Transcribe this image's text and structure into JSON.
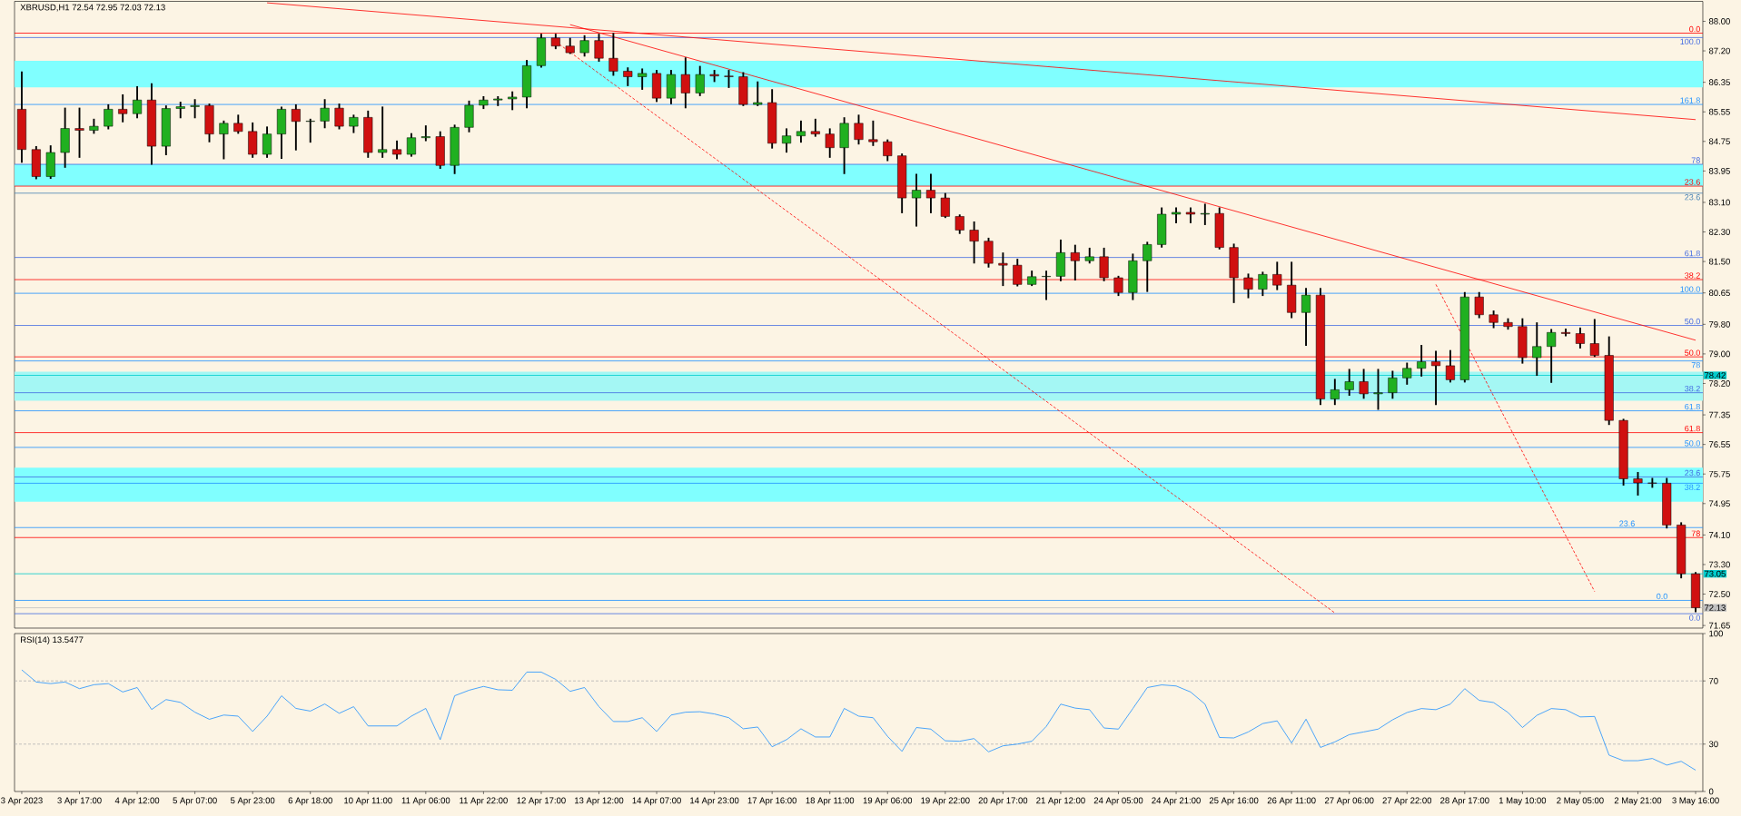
{
  "chart_data": [
    {
      "type": "candlestick",
      "title": "XBRUSD,H1 72.54 72.95 72.03 72.13",
      "categories": [
        null,
        null,
        null,
        null,
        null,
        null,
        null,
        null,
        null,
        null,
        null,
        null,
        null,
        null,
        null,
        null,
        null,
        null,
        null,
        null,
        null,
        null,
        null,
        null,
        null,
        null,
        null,
        null,
        null,
        null,
        null,
        null,
        null,
        null,
        null,
        null,
        null,
        null,
        null,
        null,
        null,
        null,
        null,
        null,
        null,
        null,
        null,
        null,
        null,
        null,
        null,
        null,
        null,
        null,
        null,
        null,
        null,
        null,
        null,
        null,
        null,
        null,
        null,
        null,
        null,
        null,
        null,
        null,
        null,
        null,
        null,
        null,
        null,
        null,
        null,
        null,
        null,
        null,
        null,
        null,
        null,
        null,
        null,
        null,
        null,
        null,
        null,
        null,
        null,
        null,
        null,
        null,
        null,
        null,
        null,
        null,
        null,
        null,
        null,
        null,
        null,
        null,
        null,
        null,
        null,
        null,
        null,
        null,
        null,
        null,
        null,
        null,
        null,
        null,
        null,
        null,
        null
      ],
      "ohlc": [
        [
          85.62,
          86.62,
          84.2,
          84.53
        ],
        [
          84.53,
          84.6,
          83.75,
          83.8
        ],
        [
          83.8,
          84.62,
          83.76,
          84.45
        ],
        [
          84.45,
          85.64,
          84.06,
          85.1
        ],
        [
          85.1,
          85.64,
          84.33,
          85.05
        ],
        [
          85.05,
          85.34,
          84.98,
          85.16
        ],
        [
          85.16,
          85.73,
          85.1,
          85.62
        ],
        [
          85.62,
          86.0,
          85.29,
          85.5
        ],
        [
          85.5,
          86.22,
          85.4,
          85.87
        ],
        [
          85.87,
          86.3,
          84.14,
          84.62
        ],
        [
          84.62,
          85.7,
          84.4,
          85.64
        ],
        [
          85.64,
          85.8,
          85.4,
          85.69
        ],
        [
          85.69,
          85.87,
          85.4,
          85.72
        ],
        [
          85.72,
          85.75,
          84.75,
          84.95
        ],
        [
          84.95,
          85.29,
          84.29,
          85.24
        ],
        [
          85.24,
          85.45,
          84.98,
          85.02
        ],
        [
          85.02,
          85.24,
          84.33,
          84.4
        ],
        [
          84.4,
          85.13,
          84.33,
          84.95
        ],
        [
          84.95,
          85.67,
          84.3,
          85.62
        ],
        [
          85.62,
          85.73,
          84.53,
          85.29
        ],
        [
          85.29,
          85.34,
          84.74,
          85.3
        ],
        [
          85.3,
          85.87,
          85.13,
          85.65
        ],
        [
          85.65,
          85.75,
          85.1,
          85.16
        ],
        [
          85.16,
          85.45,
          85.0,
          85.4
        ],
        [
          85.4,
          85.56,
          84.33,
          84.45
        ],
        [
          84.45,
          85.67,
          84.33,
          84.53
        ],
        [
          84.53,
          84.75,
          84.29,
          84.4
        ],
        [
          84.4,
          84.95,
          84.36,
          84.85
        ],
        [
          84.85,
          85.16,
          84.78,
          84.88
        ],
        [
          84.88,
          85.0,
          84.03,
          84.1
        ],
        [
          84.1,
          85.18,
          83.89,
          85.13
        ],
        [
          85.13,
          85.83,
          85.02,
          85.73
        ],
        [
          85.73,
          85.95,
          85.65,
          85.87
        ],
        [
          85.87,
          85.95,
          85.73,
          85.9
        ],
        [
          85.9,
          86.08,
          85.62,
          85.95
        ],
        [
          85.95,
          86.93,
          85.67,
          86.8
        ],
        [
          86.8,
          87.64,
          86.77,
          87.55
        ],
        [
          87.55,
          87.64,
          87.27,
          87.33
        ],
        [
          87.33,
          87.53,
          87.14,
          87.15
        ],
        [
          87.15,
          87.6,
          87.07,
          87.48
        ],
        [
          87.48,
          87.64,
          86.93,
          87.0
        ],
        [
          87.0,
          87.66,
          86.55,
          86.65
        ],
        [
          86.65,
          86.73,
          86.27,
          86.5
        ],
        [
          86.5,
          86.7,
          86.17,
          86.59
        ],
        [
          86.59,
          86.66,
          85.84,
          85.92
        ],
        [
          85.92,
          86.66,
          85.78,
          86.56
        ],
        [
          86.56,
          87.0,
          85.67,
          86.06
        ],
        [
          86.06,
          86.77,
          86.0,
          86.56
        ],
        [
          86.56,
          86.66,
          86.38,
          86.52
        ],
        [
          86.52,
          86.66,
          86.22,
          86.5
        ],
        [
          86.5,
          86.6,
          85.73,
          85.75
        ],
        [
          85.75,
          86.35,
          85.73,
          85.8
        ],
        [
          85.8,
          86.14,
          84.58,
          84.7
        ],
        [
          84.7,
          85.08,
          84.47,
          84.9
        ],
        [
          84.9,
          85.29,
          84.74,
          85.02
        ],
        [
          85.02,
          85.34,
          84.9,
          84.95
        ],
        [
          84.95,
          85.08,
          84.33,
          84.58
        ],
        [
          84.58,
          85.38,
          83.89,
          85.24
        ],
        [
          85.24,
          85.45,
          84.69,
          84.8
        ],
        [
          84.8,
          85.29,
          84.65,
          84.74
        ],
        [
          84.74,
          84.78,
          84.24,
          84.36
        ],
        [
          84.36,
          84.4,
          82.83,
          83.22
        ],
        [
          83.22,
          83.85,
          82.47,
          83.43
        ],
        [
          83.43,
          83.85,
          82.83,
          83.22
        ],
        [
          83.22,
          83.33,
          82.7,
          82.72
        ],
        [
          82.72,
          82.75,
          82.27,
          82.35
        ],
        [
          82.35,
          82.56,
          81.47,
          82.05
        ],
        [
          82.05,
          82.12,
          81.36,
          81.45
        ],
        [
          81.45,
          81.72,
          80.86,
          81.4
        ],
        [
          81.4,
          81.55,
          80.85,
          80.88
        ],
        [
          80.88,
          81.23,
          80.86,
          81.09
        ],
        [
          81.09,
          81.23,
          80.48,
          81.1
        ],
        [
          81.1,
          82.07,
          80.99,
          81.74
        ],
        [
          81.74,
          81.93,
          81.01,
          81.52
        ],
        [
          81.52,
          81.85,
          81.47,
          81.63
        ],
        [
          81.63,
          81.85,
          80.99,
          81.06
        ],
        [
          81.06,
          81.09,
          80.59,
          80.66
        ],
        [
          80.66,
          81.69,
          80.48,
          81.52
        ],
        [
          81.52,
          82.01,
          80.7,
          81.96
        ],
        [
          81.96,
          82.94,
          81.9,
          82.78
        ],
        [
          82.78,
          82.94,
          82.56,
          82.83
        ],
        [
          82.83,
          82.94,
          82.56,
          82.78
        ],
        [
          82.78,
          83.04,
          82.51,
          82.8
        ],
        [
          82.8,
          82.94,
          81.85,
          81.88
        ],
        [
          81.88,
          81.96,
          80.4,
          81.06
        ],
        [
          81.06,
          81.15,
          80.53,
          80.75
        ],
        [
          80.75,
          81.2,
          80.59,
          81.15
        ],
        [
          81.15,
          81.47,
          80.75,
          80.86
        ],
        [
          80.86,
          81.47,
          79.99,
          80.12
        ],
        [
          80.12,
          80.76,
          79.24,
          80.59
        ],
        [
          80.59,
          80.76,
          77.64,
          77.78
        ],
        [
          77.78,
          78.3,
          77.64,
          78.03
        ],
        [
          78.03,
          78.57,
          77.89,
          78.25
        ],
        [
          78.25,
          78.57,
          77.81,
          77.92
        ],
        [
          77.92,
          78.57,
          77.51,
          77.95
        ],
        [
          77.95,
          78.52,
          77.81,
          78.35
        ],
        [
          78.35,
          78.74,
          78.19,
          78.61
        ],
        [
          78.61,
          79.22,
          78.41,
          78.79
        ],
        [
          78.79,
          79.06,
          77.64,
          78.68
        ],
        [
          78.68,
          79.08,
          78.25,
          78.3
        ],
        [
          78.3,
          80.65,
          78.25,
          80.54
        ],
        [
          80.54,
          80.65,
          79.99,
          80.06
        ],
        [
          80.06,
          80.15,
          79.72,
          79.85
        ],
        [
          79.85,
          79.94,
          79.68,
          79.74
        ],
        [
          79.74,
          79.94,
          78.76,
          78.9
        ],
        [
          78.9,
          79.83,
          78.43,
          79.2
        ],
        [
          79.2,
          79.65,
          78.24,
          79.58
        ],
        [
          79.58,
          79.66,
          79.5,
          79.55
        ],
        [
          79.55,
          79.69,
          79.17,
          79.28
        ],
        [
          79.28,
          79.92,
          78.94,
          78.96
        ],
        [
          78.96,
          79.45,
          77.1,
          77.2
        ],
        [
          77.2,
          77.22,
          75.46,
          75.62
        ],
        [
          75.62,
          75.78,
          75.19,
          75.51
        ],
        [
          75.51,
          75.62,
          75.4,
          75.5
        ],
        [
          75.5,
          75.62,
          74.3,
          74.37
        ],
        [
          74.37,
          74.42,
          72.95,
          73.05
        ],
        [
          73.05,
          73.07,
          72.03,
          72.13
        ]
      ],
      "colors": [
        "#d01010",
        "#d01010",
        "#20b020",
        "#20b020",
        "#d01010",
        "#20b020",
        "#20b020",
        "#d01010",
        "#20b020",
        "#d01010",
        "#20b020",
        "#20b020",
        "#20b020",
        "#d01010",
        "#20b020",
        "#d01010",
        "#d01010",
        "#20b020",
        "#20b020",
        "#d01010",
        "#20b020",
        "#20b020",
        "#d01010",
        "#20b020",
        "#d01010",
        "#20b020",
        "#d01010",
        "#20b020",
        "#20b020",
        "#d01010",
        "#20b020",
        "#20b020",
        "#20b020",
        "#20b020",
        "#20b020",
        "#20b020",
        "#20b020",
        "#d01010",
        "#d01010",
        "#20b020",
        "#d01010",
        "#d01010",
        "#d01010",
        "#20b020",
        "#d01010",
        "#20b020",
        "#d01010",
        "#20b020",
        "#d01010",
        "#d01010",
        "#d01010",
        "#20b020",
        "#d01010",
        "#20b020",
        "#20b020",
        "#d01010",
        "#d01010",
        "#20b020",
        "#d01010",
        "#d01010",
        "#d01010",
        "#d01010",
        "#20b020",
        "#d01010",
        "#d01010",
        "#d01010",
        "#d01010",
        "#d01010",
        "#d01010",
        "#d01010",
        "#20b020",
        "#20b020",
        "#20b020",
        "#d01010",
        "#20b020",
        "#d01010",
        "#d01010",
        "#20b020",
        "#20b020",
        "#20b020",
        "#20b020",
        "#d01010",
        "#20b020",
        "#d01010",
        "#d01010",
        "#d01010",
        "#20b020",
        "#d01010",
        "#d01010",
        "#20b020",
        "#d01010",
        "#20b020",
        "#20b020",
        "#d01010",
        "#20b020",
        "#20b020",
        "#20b020",
        "#20b020",
        "#d01010",
        "#d01010",
        "#20b020",
        "#d01010",
        "#d01010",
        "#d01010",
        "#d01010",
        "#20b020",
        "#20b020",
        "#d01010",
        "#d01010",
        "#d01010",
        "#d01010",
        "#d01010",
        "#d01010",
        "#d01010",
        "#d01010",
        "#d01010",
        "#d01010"
      ],
      "series": [
        {
          "type": "line",
          "color": "#ff0000",
          "line_style": "solid",
          "values": [
            null,
            null,
            null,
            null,
            null,
            null,
            null,
            null,
            null,
            null,
            null,
            null,
            null,
            null,
            null,
            null,
            null,
            88.5,
            null,
            null,
            null,
            null,
            null,
            null,
            null,
            null,
            null,
            null,
            null,
            null,
            null,
            null,
            null,
            null,
            null,
            null,
            null,
            null,
            null,
            null,
            null,
            null,
            null,
            null,
            null,
            null,
            null,
            null,
            null,
            null,
            null,
            null,
            null,
            null,
            null,
            null,
            null,
            null,
            null,
            null,
            null,
            null,
            null,
            null,
            null,
            null,
            null,
            null,
            null,
            null,
            null,
            null,
            null,
            null,
            null,
            null,
            null,
            null,
            null,
            null,
            null,
            null,
            null,
            null,
            null,
            null,
            null,
            null,
            null,
            null,
            null,
            null,
            null,
            null,
            null,
            null,
            null,
            null,
            null,
            null,
            null,
            null,
            null,
            null,
            null,
            null,
            null,
            null,
            null,
            null,
            null,
            null,
            null,
            null,
            null,
            null,
            85.34
          ]
        },
        {
          "type": "line",
          "color": "#ff0000",
          "line_style": "solid",
          "values": [
            null,
            null,
            null,
            null,
            null,
            null,
            null,
            null,
            null,
            null,
            null,
            null,
            null,
            null,
            null,
            null,
            null,
            null,
            null,
            null,
            null,
            null,
            null,
            null,
            null,
            null,
            null,
            null,
            null,
            null,
            null,
            null,
            null,
            null,
            null,
            null,
            null,
            null,
            87.91,
            null,
            null,
            null,
            null,
            null,
            null,
            null,
            null,
            null,
            null,
            null,
            null,
            null,
            null,
            null,
            null,
            null,
            null,
            null,
            null,
            null,
            null,
            null,
            null,
            null,
            null,
            null,
            null,
            null,
            null,
            null,
            null,
            null,
            null,
            null,
            null,
            null,
            null,
            null,
            null,
            null,
            null,
            null,
            null,
            null,
            null,
            null,
            null,
            null,
            null,
            null,
            null,
            null,
            null,
            null,
            null,
            null,
            null,
            null,
            null,
            null,
            null,
            null,
            null,
            null,
            null,
            null,
            null,
            null,
            null,
            null,
            null,
            null,
            null,
            null,
            null,
            null,
            79.37
          ]
        },
        {
          "type": "line",
          "color": "#ff0000",
          "line_style": "dashed",
          "values": [
            null,
            null,
            null,
            null,
            null,
            null,
            null,
            null,
            null,
            null,
            null,
            null,
            null,
            null,
            null,
            null,
            null,
            null,
            null,
            null,
            null,
            null,
            null,
            null,
            null,
            null,
            null,
            null,
            null,
            null,
            null,
            null,
            null,
            null,
            null,
            null,
            null,
            87.45,
            null,
            null,
            null,
            null,
            null,
            null,
            null,
            null,
            null,
            null,
            null,
            null,
            null,
            null,
            null,
            null,
            null,
            null,
            null,
            null,
            null,
            null,
            null,
            null,
            null,
            null,
            null,
            null,
            null,
            null,
            null,
            null,
            null,
            null,
            null,
            null,
            null,
            null,
            null,
            null,
            null,
            null,
            null,
            null,
            null,
            null,
            null,
            null,
            null,
            null,
            null,
            null,
            null,
            71.99,
            null,
            null,
            null,
            null,
            null,
            null,
            null,
            null,
            null,
            null,
            null,
            null,
            null,
            null,
            null,
            null,
            null,
            null,
            null,
            null,
            null,
            null,
            null,
            null,
            null
          ]
        },
        {
          "type": "line",
          "color": "#ff0000",
          "line_style": "dashed",
          "values": [
            null,
            null,
            null,
            null,
            null,
            null,
            null,
            null,
            null,
            null,
            null,
            null,
            null,
            null,
            null,
            null,
            null,
            null,
            null,
            null,
            null,
            null,
            null,
            null,
            null,
            null,
            null,
            null,
            null,
            null,
            null,
            null,
            null,
            null,
            null,
            null,
            null,
            null,
            null,
            null,
            null,
            null,
            null,
            null,
            null,
            null,
            null,
            null,
            null,
            null,
            null,
            null,
            null,
            null,
            null,
            null,
            null,
            null,
            null,
            null,
            null,
            null,
            null,
            null,
            null,
            null,
            null,
            null,
            null,
            null,
            null,
            null,
            null,
            null,
            null,
            null,
            null,
            null,
            null,
            null,
            null,
            null,
            null,
            null,
            null,
            null,
            null,
            null,
            null,
            null,
            null,
            null,
            null,
            null,
            null,
            null,
            null,
            null,
            80.88,
            null,
            null,
            null,
            null,
            null,
            null,
            null,
            null,
            null,
            null,
            72.57,
            null,
            null,
            null,
            null,
            null,
            null,
            null
          ]
        }
      ],
      "ylim": [
        71.58,
        88.54
      ],
      "yticks": [
        {
          "value": 88,
          "label": "88.00"
        },
        {
          "value": 87.2,
          "label": "87.20"
        },
        86.35,
        85.55,
        84.75,
        83.95,
        {
          "value": 83.1,
          "label": "83.10"
        },
        {
          "value": 82.3,
          "label": "82.30"
        },
        {
          "value": 81.5,
          "label": "81.50"
        },
        80.65,
        {
          "value": 79.8,
          "label": "79.80"
        },
        {
          "value": 79,
          "label": "79.00"
        },
        {
          "value": 78.2,
          "label": "78.20"
        },
        77.35,
        76.55,
        75.75,
        74.95,
        {
          "value": 74.1,
          "label": "74.10"
        },
        {
          "value": 73.3,
          "label": "73.30"
        },
        {
          "value": 72.5,
          "label": "72.50"
        },
        71.65
      ],
      "tick_labels": "y",
      "bands": [
        {
          "axis": "y",
          "from": 86.21,
          "to": 86.93,
          "color": "#80ffff"
        },
        {
          "axis": "y",
          "from": 83.54,
          "to": 84.13,
          "color": "#80ffff"
        },
        {
          "axis": "y",
          "from": 77.73,
          "to": 78.52,
          "color": "#a4f7f4"
        },
        {
          "axis": "y",
          "from": 75.0,
          "to": 75.92,
          "color": "#80ffff"
        }
      ],
      "ref_lines": [
        {
          "axis": "y",
          "value": 87.68,
          "color": "#ff0000"
        },
        {
          "axis": "y",
          "value": 83.54,
          "color": "#ff0000"
        },
        {
          "axis": "y",
          "value": 81.01,
          "color": "#ff0000"
        },
        {
          "axis": "y",
          "value": 78.92,
          "color": "#ff0000"
        },
        {
          "axis": "y",
          "value": 76.87,
          "color": "#ff0000"
        },
        {
          "axis": "y",
          "value": 74.03,
          "color": "#ff0000"
        },
        {
          "axis": "y",
          "value": 87.56,
          "color": "#4169e1"
        },
        {
          "axis": "y",
          "value": 84.13,
          "color": "#4169e1"
        },
        {
          "axis": "y",
          "value": 81.61,
          "color": "#4169e1"
        },
        {
          "axis": "y",
          "value": 79.77,
          "color": "#4169e1"
        },
        {
          "axis": "y",
          "value": 77.95,
          "color": "#4169e1"
        },
        {
          "axis": "y",
          "value": 75.67,
          "color": "#4169e1"
        },
        {
          "axis": "y",
          "value": 71.97,
          "color": "#4169e1"
        },
        {
          "axis": "y",
          "value": 83.35,
          "color": "#4682b4"
        },
        {
          "axis": "y",
          "value": 85.75,
          "color": "#1e90ff"
        },
        {
          "axis": "y",
          "value": 80.64,
          "color": "#1e90ff"
        },
        {
          "axis": "y",
          "value": 78.81,
          "color": "#1e90ff"
        },
        {
          "axis": "y",
          "value": 77.46,
          "color": "#1e90ff"
        },
        {
          "axis": "y",
          "value": 76.47,
          "color": "#1e90ff"
        },
        {
          "axis": "y",
          "value": 75.5,
          "color": "#1e90ff"
        },
        {
          "axis": "y",
          "value": 74.3,
          "color": "#1e90ff"
        },
        {
          "axis": "y",
          "value": 72.33,
          "color": "#1e90ff"
        },
        {
          "axis": "y",
          "value": 78.42,
          "label": "78.42",
          "color": "#00cccc"
        },
        {
          "axis": "y",
          "value": 73.05,
          "label": "73.05",
          "color": "#00cccc"
        },
        {
          "axis": "y",
          "value": 72.13,
          "label": "72.13",
          "color": "#c0c0c0"
        }
      ],
      "annotations": [
        {
          "text": "0.0",
          "y": 87.68
        },
        {
          "text": "23.6",
          "y": 83.54
        },
        {
          "text": "38.2",
          "y": 81.01
        },
        {
          "text": "50.0",
          "y": 78.92
        },
        {
          "text": "61.8",
          "y": 76.87
        },
        {
          "text": "78",
          "y": 74.03
        },
        {
          "text": "100.0",
          "y": 87.56
        },
        {
          "text": "78",
          "y": 84.13
        },
        {
          "text": "61.8",
          "y": 81.61
        },
        {
          "text": "50.0",
          "y": 79.77
        },
        {
          "text": "38.2",
          "y": 77.95
        },
        {
          "text": "23.6",
          "y": 75.67
        },
        {
          "text": "0.0",
          "y": 71.97
        },
        {
          "text": "23.6",
          "y": 83.35
        },
        {
          "text": "161.8",
          "y": 85.75
        },
        {
          "text": "100.0",
          "y": 80.64
        },
        {
          "text": "78",
          "y": 78.81
        },
        {
          "text": "61.8",
          "y": 77.46
        },
        {
          "text": "50.0",
          "y": 76.47
        },
        {
          "text": "38.2",
          "y": 75.5
        },
        {
          "text": "23.6",
          "y": 74.3
        },
        {
          "text": "0.0",
          "y": 72.33
        }
      ]
    },
    {
      "type": "line",
      "title": "RSI(14) 13.5477",
      "categories": [
        "3 Apr 2023",
        null,
        null,
        null,
        "3 Apr 17:00",
        null,
        null,
        null,
        "4 Apr 12:00",
        null,
        null,
        null,
        "5 Apr 07:00",
        null,
        null,
        null,
        "5 Apr 23:00",
        null,
        null,
        null,
        "6 Apr 18:00",
        null,
        null,
        null,
        "10 Apr 11:00",
        null,
        null,
        null,
        "11 Apr 06:00",
        null,
        null,
        null,
        "11 Apr 22:00",
        null,
        null,
        null,
        "12 Apr 17:00",
        null,
        null,
        null,
        "13 Apr 12:00",
        null,
        null,
        null,
        "14 Apr 07:00",
        null,
        null,
        null,
        "14 Apr 23:00",
        null,
        null,
        null,
        "17 Apr 16:00",
        null,
        null,
        null,
        "18 Apr 11:00",
        null,
        null,
        null,
        "19 Apr 06:00",
        null,
        null,
        null,
        "19 Apr 22:00",
        null,
        null,
        null,
        "20 Apr 17:00",
        null,
        null,
        null,
        "21 Apr 12:00",
        null,
        null,
        null,
        "24 Apr 05:00",
        null,
        null,
        null,
        "24 Apr 21:00",
        null,
        null,
        null,
        "25 Apr 16:00",
        null,
        null,
        null,
        "26 Apr 11:00",
        null,
        null,
        null,
        "27 Apr 06:00",
        null,
        null,
        null,
        "27 Apr 22:00",
        null,
        null,
        null,
        "28 Apr 17:00",
        null,
        null,
        null,
        "1 May 10:00",
        null,
        null,
        null,
        "2 May 05:00",
        null,
        null,
        null,
        "2 May 21:00",
        null,
        null,
        null,
        "3 May 16:00"
      ],
      "series": [
        {
          "color": "#1e90ff",
          "values": [
            77.0,
            69.3,
            68.3,
            69.3,
            65.1,
            67.6,
            68.3,
            63.0,
            65.8,
            51.9,
            58.2,
            56.4,
            50.2,
            45.7,
            48.4,
            47.7,
            38.0,
            47.7,
            60.6,
            52.6,
            50.9,
            55.4,
            49.5,
            53.7,
            41.5,
            41.5,
            41.5,
            47.7,
            52.6,
            32.8,
            60.6,
            64.1,
            66.5,
            64.4,
            64.1,
            75.6,
            75.6,
            71.0,
            63.4,
            65.8,
            53.7,
            44.3,
            44.3,
            46.7,
            38.0,
            48.4,
            50.2,
            50.5,
            49.1,
            46.7,
            39.7,
            40.8,
            28.3,
            32.8,
            39.7,
            34.5,
            34.5,
            52.6,
            47.7,
            46.7,
            34.9,
            25.4,
            40.5,
            39.5,
            32.1,
            31.8,
            33.5,
            25.1,
            28.9,
            30.0,
            31.8,
            41.2,
            55.3,
            52.8,
            51.8,
            40.2,
            39.5,
            52.5,
            65.8,
            67.5,
            66.8,
            63.0,
            55.3,
            34.2,
            33.9,
            37.7,
            43.0,
            44.7,
            30.7,
            45.8,
            27.9,
            31.4,
            36.0,
            37.7,
            39.5,
            45.4,
            50.0,
            52.5,
            51.8,
            55.3,
            65.1,
            57.7,
            56.3,
            50.0,
            40.5,
            48.2,
            52.5,
            51.8,
            47.2,
            47.5,
            23.0,
            19.5,
            19.5,
            20.9,
            16.7,
            19.1,
            13.5
          ]
        }
      ],
      "ylim": [
        0,
        100
      ],
      "yticks": [
        0,
        30,
        70,
        100
      ],
      "ref_lines": [
        {
          "axis": "y",
          "value": 70,
          "color": "#b4b4b4",
          "line_style": "dashed"
        },
        {
          "axis": "y",
          "value": 30,
          "color": "#b4b4b4",
          "line_style": "dashed"
        }
      ]
    }
  ]
}
